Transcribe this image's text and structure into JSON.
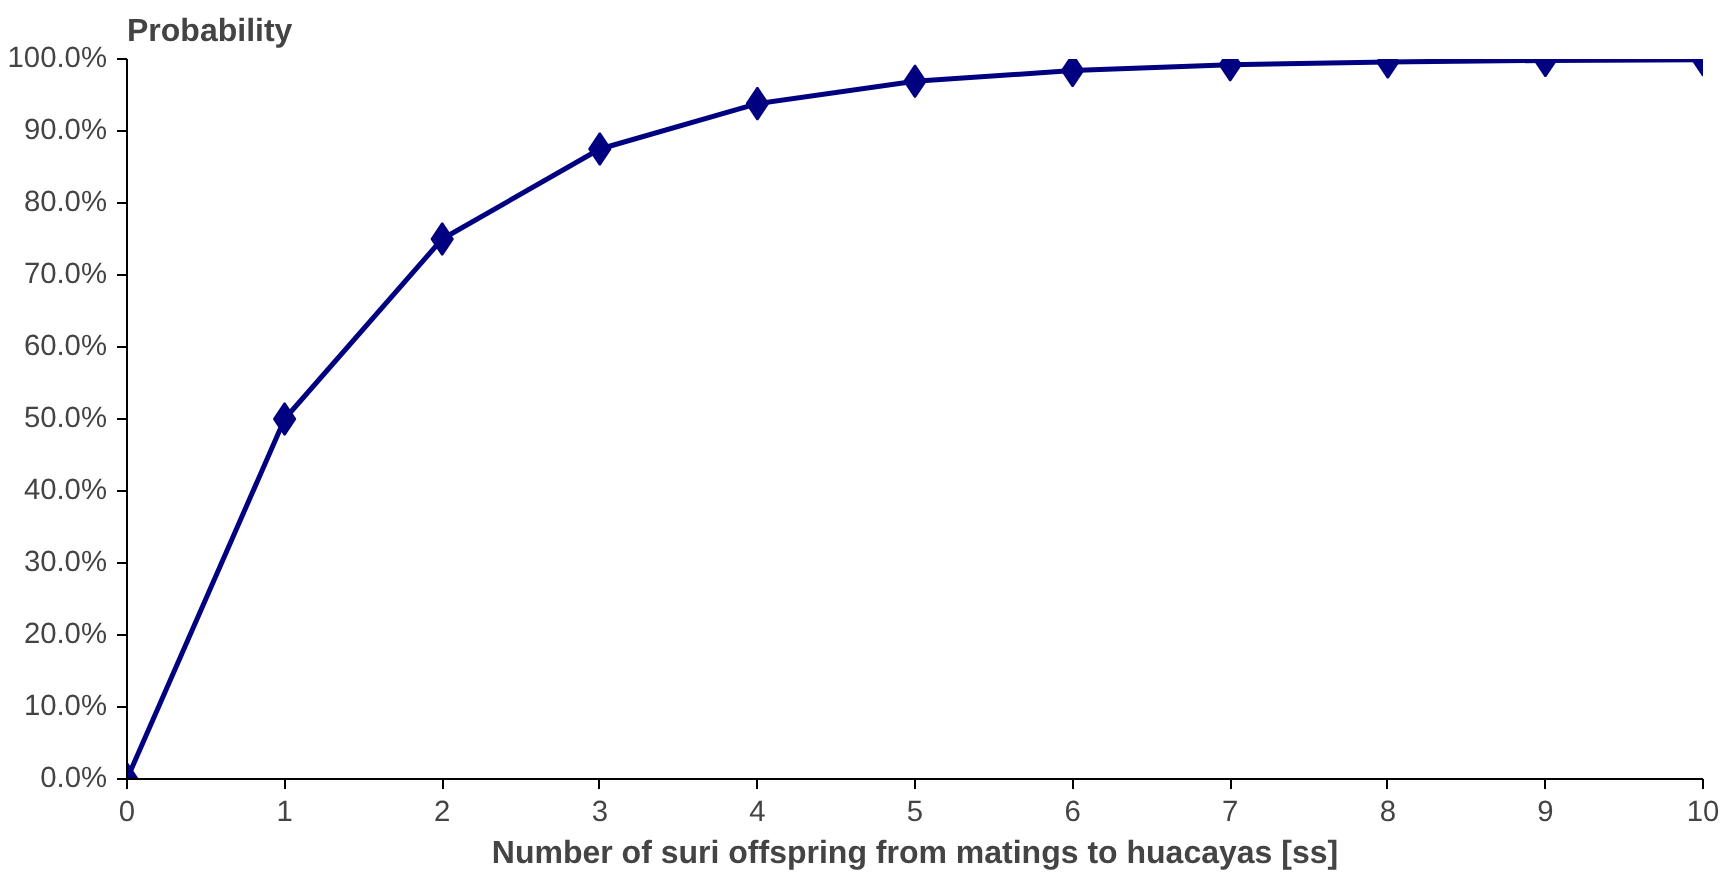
{
  "chart_data": {
    "type": "line",
    "ylabel": "Probability",
    "xlabel": "Number of suri offspring from matings to huacayas [ss]",
    "x": [
      0,
      1,
      2,
      3,
      4,
      5,
      6,
      7,
      8,
      9,
      10
    ],
    "series": [
      {
        "color": "#000080",
        "values": [
          0,
          50,
          75,
          87.5,
          93.8,
          96.9,
          98.4,
          99.2,
          99.6,
          99.8,
          99.9
        ]
      }
    ],
    "xlim": [
      0,
      10
    ],
    "xticks": [
      0,
      1,
      2,
      3,
      4,
      5,
      6,
      7,
      8,
      9,
      10
    ],
    "ylim": [
      0,
      100
    ],
    "yticks": [
      {
        "value": 0,
        "label": "0.0%"
      },
      {
        "value": 10,
        "label": "10.0%"
      },
      {
        "value": 20,
        "label": "20.0%"
      },
      {
        "value": 30,
        "label": "30.0%"
      },
      {
        "value": 40,
        "label": "40.0%"
      },
      {
        "value": 50,
        "label": "50.0%"
      },
      {
        "value": 60,
        "label": "60.0%"
      },
      {
        "value": 70,
        "label": "70.0%"
      },
      {
        "value": 80,
        "label": "80.0%"
      },
      {
        "value": 90,
        "label": "90.0%"
      },
      {
        "value": 100,
        "label": "100.0%"
      }
    ],
    "marker": "diamond",
    "line_style": "solid",
    "grid": false
  }
}
